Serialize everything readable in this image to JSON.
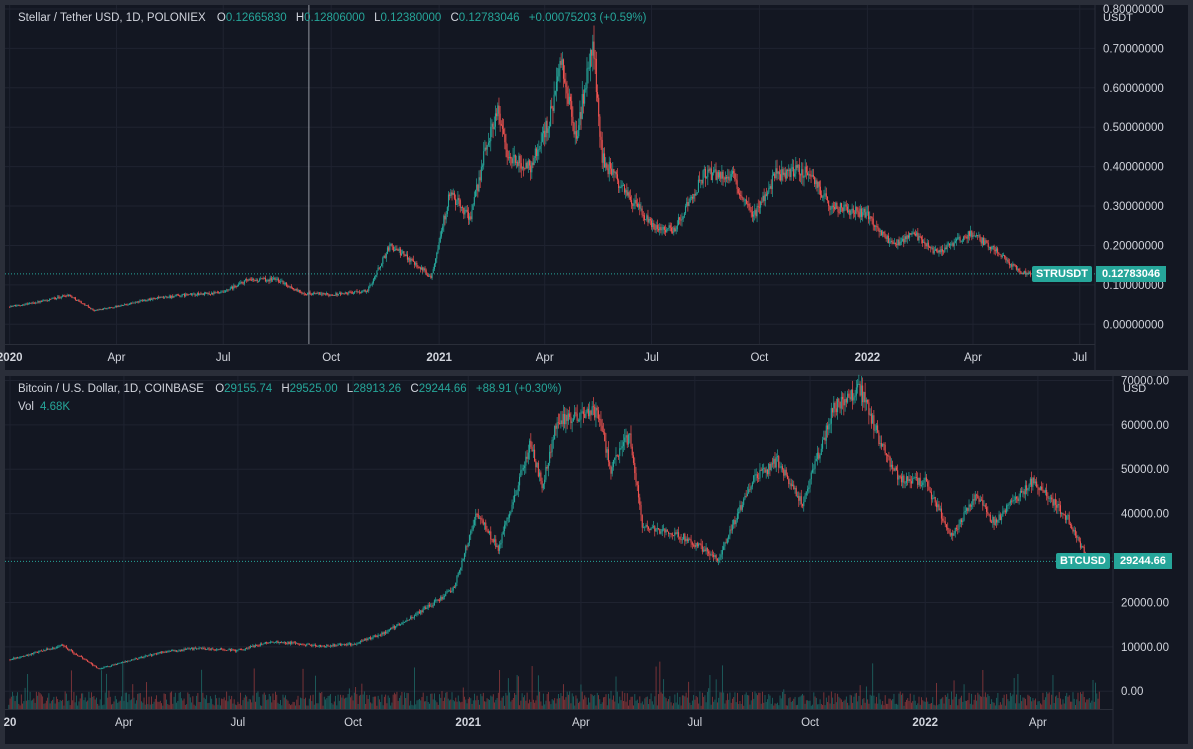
{
  "chart_data": [
    {
      "type": "candlestick",
      "symbol_label": "STRUSDT",
      "legend": {
        "title": "Stellar / Tether USD, 1D, POLONIEX",
        "open_label": "O",
        "open": "0.12665830",
        "high_label": "H",
        "high": "0.12806000",
        "low_label": "L",
        "low": "0.12380000",
        "close_label": "C",
        "close": "0.12783046",
        "change": "+0.00075203 (+0.59%)"
      },
      "unit": "USDT",
      "last_price": "0.12783046",
      "ylim": [
        -0.05,
        0.81
      ],
      "y_ticks": [
        "0.80000000",
        "0.70000000",
        "0.60000000",
        "0.50000000",
        "0.40000000",
        "0.30000000",
        "0.20000000",
        "0.10000000",
        "0.00000000"
      ],
      "y_tick_values": [
        0.8,
        0.7,
        0.6,
        0.5,
        0.4,
        0.3,
        0.2,
        0.1,
        0.0
      ],
      "x_ticks": [
        "2020",
        "Apr",
        "Jul",
        "Oct",
        "2021",
        "Apr",
        "Jul",
        "Oct",
        "2022",
        "Apr",
        "Jul"
      ],
      "x_tick_dates": [
        "2020-01-01",
        "2020-04-01",
        "2020-07-01",
        "2020-10-01",
        "2021-01-01",
        "2021-04-01",
        "2021-07-01",
        "2021-10-01",
        "2022-01-01",
        "2022-04-01",
        "2022-07-01"
      ],
      "x_range": [
        "2019-12-28",
        "2022-07-14"
      ],
      "crosshair_date": "2020-09-12",
      "series": [
        {
          "date": "2020-01-01",
          "close": 0.045
        },
        {
          "date": "2020-02-01",
          "close": 0.06
        },
        {
          "date": "2020-02-20",
          "close": 0.075
        },
        {
          "date": "2020-03-13",
          "close": 0.035
        },
        {
          "date": "2020-04-01",
          "close": 0.045
        },
        {
          "date": "2020-05-01",
          "close": 0.065
        },
        {
          "date": "2020-06-01",
          "close": 0.075
        },
        {
          "date": "2020-07-01",
          "close": 0.08
        },
        {
          "date": "2020-07-20",
          "close": 0.11
        },
        {
          "date": "2020-08-15",
          "close": 0.115
        },
        {
          "date": "2020-09-05",
          "close": 0.08
        },
        {
          "date": "2020-10-01",
          "close": 0.075
        },
        {
          "date": "2020-11-01",
          "close": 0.085
        },
        {
          "date": "2020-11-20",
          "close": 0.2
        },
        {
          "date": "2020-12-10",
          "close": 0.16
        },
        {
          "date": "2020-12-25",
          "close": 0.12
        },
        {
          "date": "2021-01-10",
          "close": 0.33
        },
        {
          "date": "2021-01-28",
          "close": 0.27
        },
        {
          "date": "2021-02-10",
          "close": 0.45
        },
        {
          "date": "2021-02-20",
          "close": 0.55
        },
        {
          "date": "2021-03-01",
          "close": 0.42
        },
        {
          "date": "2021-03-20",
          "close": 0.4
        },
        {
          "date": "2021-04-05",
          "close": 0.52
        },
        {
          "date": "2021-04-15",
          "close": 0.66
        },
        {
          "date": "2021-04-28",
          "close": 0.47
        },
        {
          "date": "2021-05-12",
          "close": 0.72
        },
        {
          "date": "2021-05-20",
          "close": 0.42
        },
        {
          "date": "2021-06-10",
          "close": 0.33
        },
        {
          "date": "2021-07-01",
          "close": 0.25
        },
        {
          "date": "2021-07-20",
          "close": 0.24
        },
        {
          "date": "2021-08-15",
          "close": 0.38
        },
        {
          "date": "2021-09-07",
          "close": 0.38
        },
        {
          "date": "2021-09-25",
          "close": 0.27
        },
        {
          "date": "2021-10-15",
          "close": 0.38
        },
        {
          "date": "2021-11-10",
          "close": 0.39
        },
        {
          "date": "2021-12-01",
          "close": 0.3
        },
        {
          "date": "2022-01-01",
          "close": 0.28
        },
        {
          "date": "2022-01-22",
          "close": 0.2
        },
        {
          "date": "2022-02-10",
          "close": 0.23
        },
        {
          "date": "2022-03-01",
          "close": 0.18
        },
        {
          "date": "2022-03-30",
          "close": 0.23
        },
        {
          "date": "2022-04-20",
          "close": 0.19
        },
        {
          "date": "2022-05-12",
          "close": 0.13
        },
        {
          "date": "2022-05-20",
          "close": 0.128
        }
      ]
    },
    {
      "type": "candlestick",
      "symbol_label": "BTCUSD",
      "legend": {
        "title": "Bitcoin / U.S. Dollar, 1D, COINBASE",
        "open_label": "O",
        "open": "29155.74",
        "high_label": "H",
        "high": "29525.00",
        "low_label": "L",
        "low": "28913.26",
        "close_label": "C",
        "close": "29244.66",
        "change": "+88.91 (+0.30%)"
      },
      "volume_label": "Vol",
      "volume_value": "4.68K",
      "unit": "USD",
      "last_price": "29244.66",
      "ylim": [
        -4000,
        71000
      ],
      "y_ticks": [
        "70000.00",
        "60000.00",
        "50000.00",
        "40000.00",
        "30000.00",
        "20000.00",
        "10000.00",
        "0.00"
      ],
      "y_tick_values": [
        70000,
        60000,
        50000,
        40000,
        30000,
        20000,
        10000,
        0
      ],
      "x_ticks": [
        "20",
        "Apr",
        "Jul",
        "Oct",
        "2021",
        "Apr",
        "Jul",
        "Oct",
        "2022",
        "Apr"
      ],
      "x_tick_dates": [
        "2020-01-01",
        "2020-04-01",
        "2020-07-01",
        "2020-10-01",
        "2021-01-01",
        "2021-04-01",
        "2021-07-01",
        "2021-10-01",
        "2022-01-01",
        "2022-04-01"
      ],
      "x_range": [
        "2019-12-28",
        "2022-05-31"
      ],
      "series": [
        {
          "date": "2020-01-01",
          "close": 7200
        },
        {
          "date": "2020-02-12",
          "close": 10300
        },
        {
          "date": "2020-03-12",
          "close": 5000
        },
        {
          "date": "2020-04-01",
          "close": 6600
        },
        {
          "date": "2020-05-01",
          "close": 8800
        },
        {
          "date": "2020-06-01",
          "close": 9700
        },
        {
          "date": "2020-07-01",
          "close": 9200
        },
        {
          "date": "2020-07-28",
          "close": 11200
        },
        {
          "date": "2020-09-05",
          "close": 10200
        },
        {
          "date": "2020-10-01",
          "close": 10600
        },
        {
          "date": "2020-10-25",
          "close": 13000
        },
        {
          "date": "2020-11-30",
          "close": 19000
        },
        {
          "date": "2020-12-20",
          "close": 23000
        },
        {
          "date": "2021-01-08",
          "close": 40000
        },
        {
          "date": "2021-01-25",
          "close": 32000
        },
        {
          "date": "2021-02-20",
          "close": 56000
        },
        {
          "date": "2021-03-01",
          "close": 46000
        },
        {
          "date": "2021-03-13",
          "close": 61000
        },
        {
          "date": "2021-04-14",
          "close": 63000
        },
        {
          "date": "2021-04-25",
          "close": 50000
        },
        {
          "date": "2021-05-10",
          "close": 58000
        },
        {
          "date": "2021-05-20",
          "close": 37000
        },
        {
          "date": "2021-06-20",
          "close": 35000
        },
        {
          "date": "2021-07-20",
          "close": 30000
        },
        {
          "date": "2021-08-15",
          "close": 47000
        },
        {
          "date": "2021-09-05",
          "close": 52000
        },
        {
          "date": "2021-09-25",
          "close": 42000
        },
        {
          "date": "2021-10-20",
          "close": 64000
        },
        {
          "date": "2021-11-10",
          "close": 68000
        },
        {
          "date": "2021-11-25",
          "close": 57000
        },
        {
          "date": "2021-12-10",
          "close": 48000
        },
        {
          "date": "2022-01-01",
          "close": 47000
        },
        {
          "date": "2022-01-22",
          "close": 35000
        },
        {
          "date": "2022-02-10",
          "close": 44000
        },
        {
          "date": "2022-02-25",
          "close": 38000
        },
        {
          "date": "2022-03-28",
          "close": 47500
        },
        {
          "date": "2022-04-25",
          "close": 39000
        },
        {
          "date": "2022-05-12",
          "close": 29000
        },
        {
          "date": "2022-05-20",
          "close": 29244
        }
      ],
      "volume_ylim": [
        0,
        60000
      ]
    }
  ],
  "colors": {
    "up": "#26a69a",
    "down": "#ef5350",
    "background": "#131722",
    "grid": "#1f2330",
    "axis_text": "#d1d4dc"
  }
}
